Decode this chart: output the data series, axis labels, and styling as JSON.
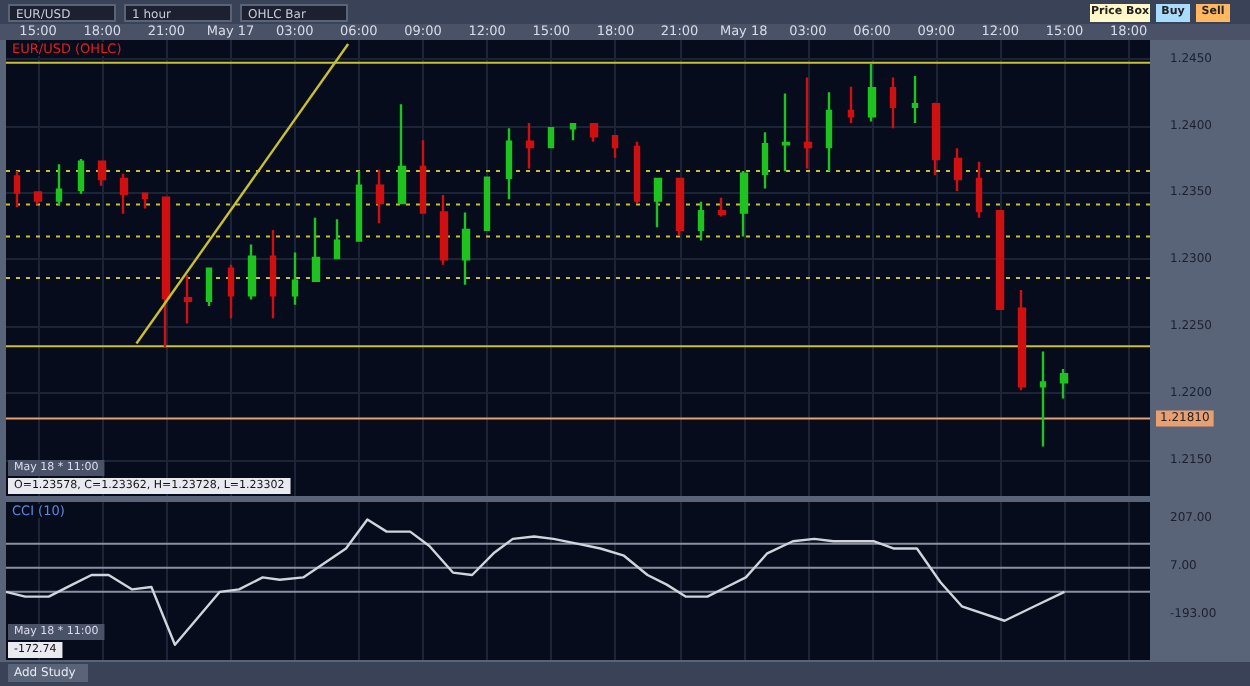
{
  "chart_data": [
    {
      "type": "candlestick",
      "title": "EUR/USD (OHLC)",
      "annotations": [
        "EUR/USD",
        "1 hour",
        "OHLC Bar",
        "Price Box",
        "Buy",
        "Sell",
        "May 18 * 11:00",
        "O=1.23578, C=1.23362, H=1.23728, L=1.23302"
      ],
      "xlim": [
        "--05-16T13:30",
        "--05-18T19:00"
      ],
      "xticks": [
        {
          "value": "--05-16T15:00",
          "label": "15:00"
        },
        {
          "value": "--05-16T18:00",
          "label": "18:00"
        },
        {
          "value": "--05-16T21:00",
          "label": "21:00"
        },
        {
          "value": "--05-17T00:00",
          "label": "May 17"
        },
        {
          "value": "--05-17T03:00",
          "label": "03:00"
        },
        {
          "value": "--05-17T06:00",
          "label": "06:00"
        },
        {
          "value": "--05-17T09:00",
          "label": "09:00"
        },
        {
          "value": "--05-17T12:00",
          "label": "12:00"
        },
        {
          "value": "--05-17T15:00",
          "label": "15:00"
        },
        {
          "value": "--05-17T18:00",
          "label": "18:00"
        },
        {
          "value": "--05-17T21:00",
          "label": "21:00"
        },
        {
          "value": "--05-18T00:00",
          "label": "May 18"
        },
        {
          "value": "--05-18T03:00",
          "label": "03:00"
        },
        {
          "value": "--05-18T06:00",
          "label": "06:00"
        },
        {
          "value": "--05-18T09:00",
          "label": "09:00"
        },
        {
          "value": "--05-18T12:00",
          "label": "12:00"
        },
        {
          "value": "--05-18T15:00",
          "label": "15:00"
        },
        {
          "value": "--05-18T18:00",
          "label": "18:00"
        }
      ],
      "ylim": [
        1.2123,
        1.2464
      ],
      "yticks": [
        {
          "value": 1.215,
          "label": "1.2150"
        },
        {
          "value": 1.22,
          "label": "1.2200"
        },
        {
          "value": 1.225,
          "label": "1.2250"
        },
        {
          "value": 1.23,
          "label": "1.2300"
        },
        {
          "value": 1.235,
          "label": "1.2350"
        },
        {
          "value": 1.24,
          "label": "1.2400"
        },
        {
          "value": 1.245,
          "label": "1.2450"
        }
      ],
      "grid": true,
      "ref_lines": [
        {
          "axis": "y",
          "value": 1.2447,
          "color": "#c8c030",
          "line_style": "solid"
        },
        {
          "axis": "y",
          "value": 1.2366,
          "color": "#c8c030",
          "line_style": "dotted"
        },
        {
          "axis": "y",
          "value": 1.2341,
          "color": "#c8c030",
          "line_style": "dotted"
        },
        {
          "axis": "y",
          "value": 1.2317,
          "color": "#c8c030",
          "line_style": "dotted"
        },
        {
          "axis": "y",
          "value": 1.2286,
          "color": "#c8c030",
          "line_style": "dotted"
        },
        {
          "axis": "y",
          "value": 1.2235,
          "color": "#c8c030",
          "line_style": "solid"
        },
        {
          "axis": "y",
          "value": 1.2181,
          "color": "#e8a070",
          "line_style": "solid",
          "label": "1.21810"
        }
      ],
      "series": [
        {
          "x": [
            "--05-16T14:00",
            "--05-16T15:00",
            "--05-16T16:00",
            "--05-16T17:00",
            "--05-16T18:00",
            "--05-16T19:00",
            "--05-16T20:00",
            "--05-16T21:00",
            "--05-16T22:00",
            "--05-16T23:00",
            "--05-17T00:00",
            "--05-17T01:00",
            "--05-17T02:00",
            "--05-17T03:00",
            "--05-17T04:00",
            "--05-17T05:00",
            "--05-17T06:00",
            "--05-17T07:00",
            "--05-17T08:00",
            "--05-17T09:00",
            "--05-17T10:00",
            "--05-17T11:00",
            "--05-17T12:00",
            "--05-17T13:00",
            "--05-17T14:00",
            "--05-17T15:00",
            "--05-17T16:00",
            "--05-17T17:00",
            "--05-17T18:00",
            "--05-17T19:00",
            "--05-17T20:00",
            "--05-17T21:00",
            "--05-17T22:00",
            "--05-17T23:00",
            "--05-18T00:00",
            "--05-18T01:00",
            "--05-18T02:00",
            "--05-18T03:00",
            "--05-18T04:00",
            "--05-18T05:00",
            "--05-18T06:00",
            "--05-18T07:00",
            "--05-18T08:00",
            "--05-18T09:00",
            "--05-18T10:00",
            "--05-18T11:00",
            "--05-18T12:00",
            "--05-18T13:00",
            "--05-18T14:00",
            "--05-18T15:00"
          ],
          "ohlc": [
            [
              1.2362,
              1.2366,
              1.2339,
              1.235
            ],
            [
              1.235,
              1.235,
              1.2341,
              1.2344
            ],
            [
              1.2344,
              1.2371,
              1.234,
              1.2352
            ],
            [
              1.2352,
              1.2375,
              1.2349,
              1.2373
            ],
            [
              1.2373,
              1.2373,
              1.2355,
              1.236
            ],
            [
              1.236,
              1.2364,
              1.2334,
              1.2349
            ],
            [
              1.2349,
              1.2349,
              1.2338,
              1.2346
            ],
            [
              1.2346,
              1.2346,
              1.2234,
              1.2271
            ],
            [
              1.2271,
              1.2288,
              1.2252,
              1.2269
            ],
            [
              1.2269,
              1.2293,
              1.2265,
              1.2293
            ],
            [
              1.2293,
              1.2296,
              1.2256,
              1.2273
            ],
            [
              1.2273,
              1.2311,
              1.227,
              1.2302
            ],
            [
              1.2302,
              1.2322,
              1.2256,
              1.2273
            ],
            [
              1.2273,
              1.2305,
              1.2266,
              1.2284
            ],
            [
              1.2284,
              1.2331,
              1.2283,
              1.2301
            ],
            [
              1.2301,
              1.233,
              1.23,
              1.2314
            ],
            [
              1.2314,
              1.2366,
              1.2314,
              1.2355
            ],
            [
              1.2355,
              1.2367,
              1.2327,
              1.2342
            ],
            [
              1.2342,
              1.2416,
              1.2342,
              1.2369
            ],
            [
              1.2369,
              1.2389,
              1.2334,
              1.2335
            ],
            [
              1.2335,
              1.2348,
              1.2296,
              1.23
            ],
            [
              1.23,
              1.2335,
              1.2281,
              1.2322
            ],
            [
              1.2322,
              1.2361,
              1.2322,
              1.2361
            ],
            [
              1.2361,
              1.2398,
              1.2345,
              1.2388
            ],
            [
              1.2388,
              1.2402,
              1.2368,
              1.2384
            ],
            [
              1.2384,
              1.2399,
              1.2383,
              1.2398
            ],
            [
              1.2398,
              1.2402,
              1.2389,
              1.2401
            ],
            [
              1.2401,
              1.2402,
              1.2388,
              1.2392
            ],
            [
              1.2392,
              1.2392,
              1.2376,
              1.2384
            ],
            [
              1.2384,
              1.2388,
              1.2342,
              1.2344
            ],
            [
              1.2344,
              1.2361,
              1.2324,
              1.236
            ],
            [
              1.236,
              1.2361,
              1.2318,
              1.2322
            ],
            [
              1.2322,
              1.2343,
              1.2314,
              1.2336
            ],
            [
              1.2336,
              1.2346,
              1.2332,
              1.2334
            ],
            [
              1.2335,
              1.2366,
              1.2317,
              1.2364
            ],
            [
              1.2364,
              1.2395,
              1.2353,
              1.2386
            ],
            [
              1.2386,
              1.2424,
              1.2366,
              1.2387
            ],
            [
              1.2387,
              1.2436,
              1.2368,
              1.2384
            ],
            [
              1.2384,
              1.2425,
              1.2366,
              1.2411
            ],
            [
              1.2411,
              1.2429,
              1.2402,
              1.2407
            ],
            [
              1.2407,
              1.2446,
              1.2403,
              1.2428
            ],
            [
              1.2428,
              1.2436,
              1.2398,
              1.2414
            ],
            [
              1.2414,
              1.2437,
              1.2402,
              1.2416
            ],
            [
              1.2416,
              1.2417,
              1.2363,
              1.2375
            ],
            [
              1.2375,
              1.2383,
              1.2351,
              1.236
            ],
            [
              1.236,
              1.2373,
              1.2331,
              1.2336
            ],
            [
              1.2336,
              1.2336,
              1.2262,
              1.2263
            ],
            [
              1.2263,
              1.2277,
              1.2202,
              1.2205
            ],
            [
              1.2205,
              1.2231,
              1.216,
              1.2208
            ],
            [
              1.2208,
              1.2218,
              1.2196,
              1.2214
            ]
          ],
          "colors": [
            "#d01010",
            "#d01010",
            "#1fc31f",
            "#1fc31f",
            "#d01010",
            "#d01010",
            "#d01010",
            "#d01010",
            "#d01010",
            "#1fc31f",
            "#d01010",
            "#1fc31f",
            "#d01010",
            "#1fc31f",
            "#1fc31f",
            "#1fc31f",
            "#1fc31f",
            "#d01010",
            "#1fc31f",
            "#d01010",
            "#d01010",
            "#1fc31f",
            "#1fc31f",
            "#1fc31f",
            "#d01010",
            "#1fc31f",
            "#1fc31f",
            "#d01010",
            "#d01010",
            "#d01010",
            "#1fc31f",
            "#d01010",
            "#1fc31f",
            "#d01010",
            "#1fc31f",
            "#1fc31f",
            "#1fc31f",
            "#d01010",
            "#1fc31f",
            "#d01010",
            "#1fc31f",
            "#d01010",
            "#1fc31f",
            "#d01010",
            "#d01010",
            "#d01010",
            "#d01010",
            "#d01010",
            "#1fc31f",
            "#1fc31f"
          ]
        },
        {
          "type": "line",
          "x": [
            "--05-16T19:36",
            "--05-17T05:30"
          ],
          "values": [
            1.2237,
            1.2461
          ],
          "color": "#c8c030",
          "marker": "none"
        }
      ]
    },
    {
      "type": "line",
      "title": "CCI (10)",
      "annotations": [
        "May 18 * 11:00",
        "-172.74",
        "Add Study"
      ],
      "xlim": [
        "--05-16T13:30",
        "--05-18T19:00"
      ],
      "xticks": [
        "--05-16T15:00",
        "--05-16T18:00",
        "--05-16T21:00",
        "--05-17T00:00",
        "--05-17T03:00",
        "--05-17T06:00",
        "--05-17T09:00",
        "--05-17T12:00",
        "--05-17T15:00",
        "--05-17T18:00",
        "--05-17T21:00",
        "--05-18T00:00",
        "--05-18T03:00",
        "--05-18T06:00",
        "--05-18T09:00",
        "--05-18T12:00",
        "--05-18T15:00",
        "--05-18T18:00"
      ],
      "ylim": [
        -383,
        273
      ],
      "yticks": [
        {
          "value": -193,
          "label": "-193.00"
        },
        {
          "value": 7,
          "label": "7.00"
        },
        {
          "value": 207,
          "label": "207.00"
        }
      ],
      "tick_labels": "y",
      "grid": "x",
      "ref_lines": [
        {
          "axis": "y",
          "value": 100,
          "color": "#8a90a0",
          "line_style": "solid"
        },
        {
          "axis": "y",
          "value": 0,
          "color": "#8a90a0",
          "line_style": "solid"
        },
        {
          "axis": "y",
          "value": -100,
          "color": "#8a90a0",
          "line_style": "solid"
        }
      ],
      "series": [
        {
          "color": "#d0d4dc",
          "marker": "none",
          "x": [
            "--05-16T13:30",
            "--05-16T14:24",
            "--05-16T15:30",
            "--05-16T16:36",
            "--05-16T17:30",
            "--05-16T18:18",
            "--05-16T19:24",
            "--05-16T20:18",
            "--05-16T21:24",
            "--05-16T23:30",
            "--05-17T00:24",
            "--05-17T01:30",
            "--05-17T02:18",
            "--05-17T03:24",
            "--05-17T05:24",
            "--05-17T06:24",
            "--05-17T07:18",
            "--05-17T08:24",
            "--05-17T09:18",
            "--05-17T10:24",
            "--05-17T11:18",
            "--05-17T12:18",
            "--05-17T13:12",
            "--05-17T14:12",
            "--05-17T15:06",
            "--05-17T16:12",
            "--05-17T17:18",
            "--05-17T18:24",
            "--05-17T19:30",
            "--05-17T20:24",
            "--05-17T21:18",
            "--05-17T22:18",
            "--05-17T23:12",
            "--05-18T00:06",
            "--05-18T01:06",
            "--05-18T02:18",
            "--05-18T03:18",
            "--05-18T04:12",
            "--05-18T06:06",
            "--05-18T07:00",
            "--05-18T08:06",
            "--05-18T09:12",
            "--05-18T10:12",
            "--05-18T12:12",
            "--05-18T13:36",
            "--05-18T15:00"
          ],
          "values": [
            -100,
            -120,
            -120,
            -70,
            -30,
            -30,
            -90,
            -80,
            -320,
            -100,
            -90,
            -40,
            -50,
            -40,
            80,
            200,
            150,
            150,
            90,
            -20,
            -30,
            60,
            120,
            130,
            120,
            100,
            80,
            50,
            -30,
            -70,
            -120,
            -120,
            -80,
            -40,
            60,
            110,
            120,
            110,
            110,
            80,
            80,
            -60,
            -160,
            -220,
            -160,
            -100
          ]
        }
      ]
    }
  ]
}
